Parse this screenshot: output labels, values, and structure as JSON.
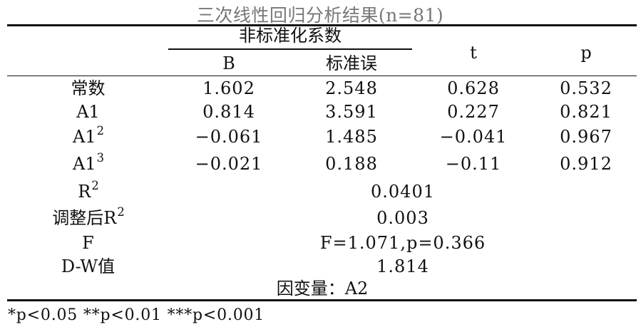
{
  "table": {
    "title": "三次线性回归分析结果(n=81)",
    "header": {
      "group_label": "非标准化系数",
      "col_B": "B",
      "col_se": "标准误",
      "col_t": "t",
      "col_p": "p"
    },
    "rows": [
      {
        "label": "常数",
        "sup": "",
        "B": "1.602",
        "se": "2.548",
        "t": "0.628",
        "p": "0.532"
      },
      {
        "label": "A1",
        "sup": "",
        "B": "0.814",
        "se": "3.591",
        "t": "0.227",
        "p": "0.821"
      },
      {
        "label": "A1",
        "sup": "2",
        "B": "−0.061",
        "se": "1.485",
        "t": "−0.041",
        "p": "0.967"
      },
      {
        "label": "A1",
        "sup": "3",
        "B": "−0.021",
        "se": "0.188",
        "t": "−0.11",
        "p": "0.912"
      }
    ],
    "summary": [
      {
        "label": "R",
        "sup": "2",
        "value": "0.0401"
      },
      {
        "label": "调整后R",
        "sup": "2",
        "value": "0.003"
      },
      {
        "label": "F",
        "sup": "",
        "value": "F=1.071,p=0.366"
      },
      {
        "label": "D-W值",
        "sup": "",
        "value": "1.814"
      }
    ],
    "dependent_var": "因变量：A2",
    "footnote": "*p<0.05 **p<0.01 ***p<0.001"
  }
}
